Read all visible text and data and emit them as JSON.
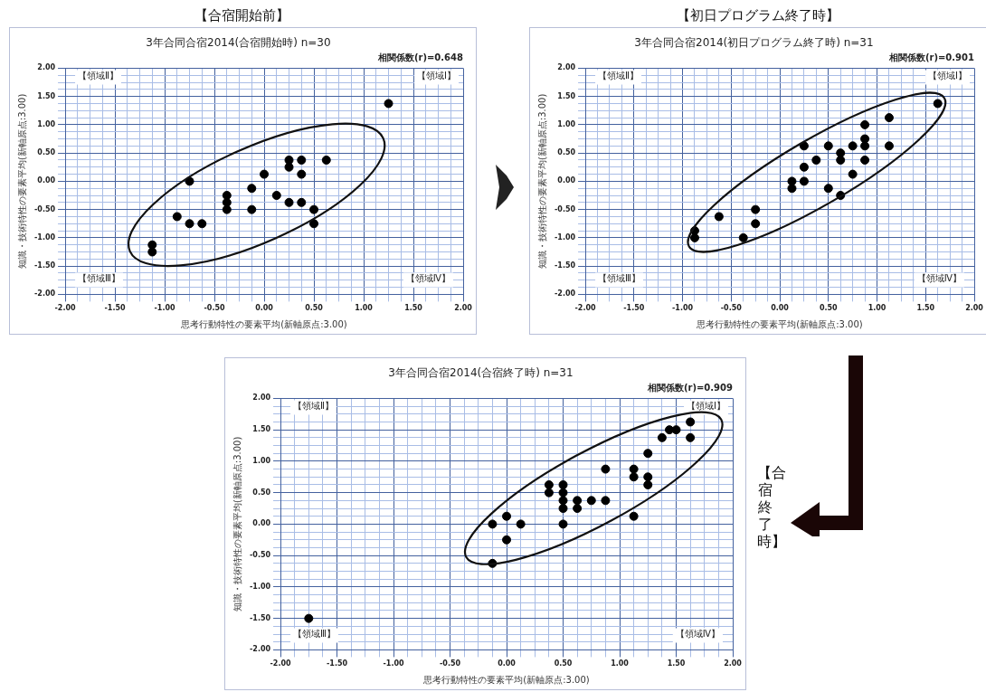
{
  "chart_data": [
    {
      "type": "scatter",
      "title": "3年合同合宿2014(合宿開始時) n=30",
      "xlabel": "思考行動特性の要素平均(新軸原点:3.00)",
      "ylabel": "知識・技術特性の要素平均(新軸原点:3.00)",
      "annotations": [
        "【合宿開始前】",
        "相関係数(r)=0.648",
        "【領域Ⅱ】",
        "【領域Ⅰ】",
        "【領域Ⅲ】",
        "【領域Ⅳ】"
      ],
      "x": [
        1.25,
        0.25,
        0.25,
        0.375,
        0.375,
        0.625,
        0,
        -0.75,
        -0.125,
        -0.375,
        -0.375,
        -0.375,
        -0.125,
        0.125,
        0.25,
        0.375,
        0.5,
        0.5,
        -0.875,
        -0.75,
        -0.625,
        -1.125,
        -1.125
      ],
      "values": [
        1.375,
        0.375,
        0.25,
        0.375,
        0.125,
        0.375,
        0.125,
        0,
        -0.125,
        -0.25,
        -0.375,
        -0.5,
        -0.5,
        -0.25,
        -0.375,
        -0.375,
        -0.5,
        -0.75,
        -0.625,
        -0.75,
        -0.75,
        -1.125,
        -1.25
      ],
      "color": "#000000",
      "marker": "circle",
      "grid": true,
      "xlim": [
        -2,
        2
      ],
      "ylim": [
        -2,
        2
      ],
      "xticks": [
        {
          "value": -2,
          "label": "-2.00"
        },
        {
          "value": -1.875,
          "label": null
        },
        {
          "value": -1.75,
          "label": null
        },
        {
          "value": -1.625,
          "label": null
        },
        {
          "value": -1.5,
          "label": "-1.50"
        },
        {
          "value": -1.375,
          "label": null
        },
        {
          "value": -1.25,
          "label": null
        },
        {
          "value": -1.125,
          "label": null
        },
        {
          "value": -1,
          "label": "-1.00"
        },
        {
          "value": -0.875,
          "label": null
        },
        {
          "value": -0.75,
          "label": null
        },
        {
          "value": -0.625,
          "label": null
        },
        {
          "value": -0.5,
          "label": "-0.50"
        },
        {
          "value": -0.375,
          "label": null
        },
        {
          "value": -0.25,
          "label": null
        },
        {
          "value": -0.125,
          "label": null
        },
        {
          "value": 0,
          "label": "0.00"
        },
        {
          "value": 0.125,
          "label": null
        },
        {
          "value": 0.25,
          "label": null
        },
        {
          "value": 0.375,
          "label": null
        },
        {
          "value": 0.5,
          "label": "0.50"
        },
        {
          "value": 0.625,
          "label": null
        },
        {
          "value": 0.75,
          "label": null
        },
        {
          "value": 0.875,
          "label": null
        },
        {
          "value": 1,
          "label": "1.00"
        },
        {
          "value": 1.125,
          "label": null
        },
        {
          "value": 1.25,
          "label": null
        },
        {
          "value": 1.375,
          "label": null
        },
        {
          "value": 1.5,
          "label": "1.50"
        },
        {
          "value": 1.625,
          "label": null
        },
        {
          "value": 1.75,
          "label": null
        },
        {
          "value": 1.875,
          "label": null
        },
        {
          "value": 2,
          "label": "2.00"
        }
      ],
      "yticks": [
        {
          "value": -2,
          "label": "-2.00"
        },
        {
          "value": -1.875,
          "label": null
        },
        {
          "value": -1.75,
          "label": null
        },
        {
          "value": -1.625,
          "label": null
        },
        {
          "value": -1.5,
          "label": "-1.50"
        },
        {
          "value": -1.375,
          "label": null
        },
        {
          "value": -1.25,
          "label": null
        },
        {
          "value": -1.125,
          "label": null
        },
        {
          "value": -1,
          "label": "-1.00"
        },
        {
          "value": -0.875,
          "label": null
        },
        {
          "value": -0.75,
          "label": null
        },
        {
          "value": -0.625,
          "label": null
        },
        {
          "value": -0.5,
          "label": "-0.50"
        },
        {
          "value": -0.375,
          "label": null
        },
        {
          "value": -0.25,
          "label": null
        },
        {
          "value": -0.125,
          "label": null
        },
        {
          "value": 0,
          "label": "0.00"
        },
        {
          "value": 0.125,
          "label": null
        },
        {
          "value": 0.25,
          "label": null
        },
        {
          "value": 0.375,
          "label": null
        },
        {
          "value": 0.5,
          "label": "0.50"
        },
        {
          "value": 0.625,
          "label": null
        },
        {
          "value": 0.75,
          "label": null
        },
        {
          "value": 0.875,
          "label": null
        },
        {
          "value": 1,
          "label": "1.00"
        },
        {
          "value": 1.125,
          "label": null
        },
        {
          "value": 1.25,
          "label": null
        },
        {
          "value": 1.375,
          "label": null
        },
        {
          "value": 1.5,
          "label": "1.50"
        },
        {
          "value": 1.625,
          "label": null
        },
        {
          "value": 1.75,
          "label": null
        },
        {
          "value": 1.875,
          "label": null
        },
        {
          "value": 2,
          "label": "2.00"
        }
      ]
    },
    {
      "type": "scatter",
      "title": "3年合同合宿2014(初日プログラム終了時) n=31",
      "xlabel": "思考行動特性の要素平均(新軸原点:3.00)",
      "ylabel": "知識・技術特性の要素平均(新軸原点:3.00)",
      "annotations": [
        "【初日プログラム終了時】",
        "相関係数(r)=0.901",
        "【領域Ⅱ】",
        "【領域Ⅰ】",
        "【領域Ⅲ】",
        "【領域Ⅳ】"
      ],
      "x": [
        1.625,
        1.125,
        0.875,
        0.875,
        0.875,
        0.875,
        1.125,
        0.75,
        0.5,
        0.25,
        0.625,
        0.625,
        0.375,
        0.25,
        0.75,
        0.125,
        0.25,
        0.125,
        0.5,
        0.625,
        -0.25,
        -0.25,
        -0.625,
        -0.375,
        -0.875,
        -0.875
      ],
      "values": [
        1.375,
        1.125,
        1,
        0.75,
        0.625,
        0.375,
        0.625,
        0.625,
        0.625,
        0.625,
        0.5,
        0.375,
        0.375,
        0.25,
        0.125,
        0,
        0,
        -0.125,
        -0.125,
        -0.25,
        -0.5,
        -0.75,
        -0.625,
        -1,
        -0.875,
        -1
      ],
      "color": "#000000",
      "marker": "circle",
      "grid": true,
      "xlim": [
        -2,
        2
      ],
      "ylim": [
        -2,
        2
      ],
      "xticks": [
        {
          "value": -2,
          "label": "-2.00"
        },
        {
          "value": -1.875,
          "label": null
        },
        {
          "value": -1.75,
          "label": null
        },
        {
          "value": -1.625,
          "label": null
        },
        {
          "value": -1.5,
          "label": "-1.50"
        },
        {
          "value": -1.375,
          "label": null
        },
        {
          "value": -1.25,
          "label": null
        },
        {
          "value": -1.125,
          "label": null
        },
        {
          "value": -1,
          "label": "-1.00"
        },
        {
          "value": -0.875,
          "label": null
        },
        {
          "value": -0.75,
          "label": null
        },
        {
          "value": -0.625,
          "label": null
        },
        {
          "value": -0.5,
          "label": "-0.50"
        },
        {
          "value": -0.375,
          "label": null
        },
        {
          "value": -0.25,
          "label": null
        },
        {
          "value": -0.125,
          "label": null
        },
        {
          "value": 0,
          "label": "0.00"
        },
        {
          "value": 0.125,
          "label": null
        },
        {
          "value": 0.25,
          "label": null
        },
        {
          "value": 0.375,
          "label": null
        },
        {
          "value": 0.5,
          "label": "0.50"
        },
        {
          "value": 0.625,
          "label": null
        },
        {
          "value": 0.75,
          "label": null
        },
        {
          "value": 0.875,
          "label": null
        },
        {
          "value": 1,
          "label": "1.00"
        },
        {
          "value": 1.125,
          "label": null
        },
        {
          "value": 1.25,
          "label": null
        },
        {
          "value": 1.375,
          "label": null
        },
        {
          "value": 1.5,
          "label": "1.50"
        },
        {
          "value": 1.625,
          "label": null
        },
        {
          "value": 1.75,
          "label": null
        },
        {
          "value": 1.875,
          "label": null
        },
        {
          "value": 2,
          "label": "2.00"
        }
      ],
      "yticks": [
        {
          "value": -2,
          "label": "-2.00"
        },
        {
          "value": -1.875,
          "label": null
        },
        {
          "value": -1.75,
          "label": null
        },
        {
          "value": -1.625,
          "label": null
        },
        {
          "value": -1.5,
          "label": "-1.50"
        },
        {
          "value": -1.375,
          "label": null
        },
        {
          "value": -1.25,
          "label": null
        },
        {
          "value": -1.125,
          "label": null
        },
        {
          "value": -1,
          "label": "-1.00"
        },
        {
          "value": -0.875,
          "label": null
        },
        {
          "value": -0.75,
          "label": null
        },
        {
          "value": -0.625,
          "label": null
        },
        {
          "value": -0.5,
          "label": "-0.50"
        },
        {
          "value": -0.375,
          "label": null
        },
        {
          "value": -0.25,
          "label": null
        },
        {
          "value": -0.125,
          "label": null
        },
        {
          "value": 0,
          "label": "0.00"
        },
        {
          "value": 0.125,
          "label": null
        },
        {
          "value": 0.25,
          "label": null
        },
        {
          "value": 0.375,
          "label": null
        },
        {
          "value": 0.5,
          "label": "0.50"
        },
        {
          "value": 0.625,
          "label": null
        },
        {
          "value": 0.75,
          "label": null
        },
        {
          "value": 0.875,
          "label": null
        },
        {
          "value": 1,
          "label": "1.00"
        },
        {
          "value": 1.125,
          "label": null
        },
        {
          "value": 1.25,
          "label": null
        },
        {
          "value": 1.375,
          "label": null
        },
        {
          "value": 1.5,
          "label": "1.50"
        },
        {
          "value": 1.625,
          "label": null
        },
        {
          "value": 1.75,
          "label": null
        },
        {
          "value": 1.875,
          "label": null
        },
        {
          "value": 2,
          "label": "2.00"
        }
      ]
    },
    {
      "type": "scatter",
      "title": "3年合同合宿2014(合宿終了時) n=31",
      "xlabel": "思考行動特性の要素平均(新軸原点:3.00)",
      "ylabel": "知識・技術特性の要素平均(新軸原点:3.00)",
      "annotations": [
        "【合宿終了時】",
        "相関係数(r)=0.909",
        "【領域Ⅱ】",
        "【領域Ⅰ】",
        "【領域Ⅲ】",
        "【領域Ⅳ】"
      ],
      "x": [
        1.625,
        1.44,
        1.5,
        1.625,
        1.375,
        1.25,
        1.125,
        1.125,
        1.25,
        1.25,
        1.125,
        0.875,
        0.875,
        0.75,
        0.625,
        0.625,
        0.5,
        0.5,
        0.5,
        0.5,
        0.5,
        0.375,
        0.375,
        0.125,
        0,
        0,
        -0.125,
        -0.125,
        -1.75
      ],
      "values": [
        1.625,
        1.5,
        1.5,
        1.375,
        1.375,
        1.125,
        0.875,
        0.75,
        0.75,
        0.625,
        0.125,
        0.875,
        0.375,
        0.375,
        0.375,
        0.25,
        0.625,
        0.5,
        0.375,
        0.25,
        0,
        0.625,
        0.5,
        0,
        0.125,
        -0.25,
        0,
        -0.625,
        -1.5
      ],
      "color": "#000000",
      "marker": "circle",
      "grid": true,
      "xlim": [
        -2,
        2
      ],
      "ylim": [
        -2,
        2
      ],
      "xticks": [
        {
          "value": -2,
          "label": "-2.00"
        },
        {
          "value": -1.875,
          "label": null
        },
        {
          "value": -1.75,
          "label": null
        },
        {
          "value": -1.625,
          "label": null
        },
        {
          "value": -1.5,
          "label": "-1.50"
        },
        {
          "value": -1.375,
          "label": null
        },
        {
          "value": -1.25,
          "label": null
        },
        {
          "value": -1.125,
          "label": null
        },
        {
          "value": -1,
          "label": "-1.00"
        },
        {
          "value": -0.875,
          "label": null
        },
        {
          "value": -0.75,
          "label": null
        },
        {
          "value": -0.625,
          "label": null
        },
        {
          "value": -0.5,
          "label": "-0.50"
        },
        {
          "value": -0.375,
          "label": null
        },
        {
          "value": -0.25,
          "label": null
        },
        {
          "value": -0.125,
          "label": null
        },
        {
          "value": 0,
          "label": "0.00"
        },
        {
          "value": 0.125,
          "label": null
        },
        {
          "value": 0.25,
          "label": null
        },
        {
          "value": 0.375,
          "label": null
        },
        {
          "value": 0.5,
          "label": "0.50"
        },
        {
          "value": 0.625,
          "label": null
        },
        {
          "value": 0.75,
          "label": null
        },
        {
          "value": 0.875,
          "label": null
        },
        {
          "value": 1,
          "label": "1.00"
        },
        {
          "value": 1.125,
          "label": null
        },
        {
          "value": 1.25,
          "label": null
        },
        {
          "value": 1.375,
          "label": null
        },
        {
          "value": 1.5,
          "label": "1.50"
        },
        {
          "value": 1.625,
          "label": null
        },
        {
          "value": 1.75,
          "label": null
        },
        {
          "value": 1.875,
          "label": null
        },
        {
          "value": 2,
          "label": "2.00"
        }
      ],
      "yticks": [
        {
          "value": -2,
          "label": "-2.00"
        },
        {
          "value": -1.875,
          "label": null
        },
        {
          "value": -1.75,
          "label": null
        },
        {
          "value": -1.625,
          "label": null
        },
        {
          "value": -1.5,
          "label": "-1.50"
        },
        {
          "value": -1.375,
          "label": null
        },
        {
          "value": -1.25,
          "label": null
        },
        {
          "value": -1.125,
          "label": null
        },
        {
          "value": -1,
          "label": "-1.00"
        },
        {
          "value": -0.875,
          "label": null
        },
        {
          "value": -0.75,
          "label": null
        },
        {
          "value": -0.625,
          "label": null
        },
        {
          "value": -0.5,
          "label": "-0.50"
        },
        {
          "value": -0.375,
          "label": null
        },
        {
          "value": -0.25,
          "label": null
        },
        {
          "value": -0.125,
          "label": null
        },
        {
          "value": 0,
          "label": "0.00"
        },
        {
          "value": 0.125,
          "label": null
        },
        {
          "value": 0.25,
          "label": null
        },
        {
          "value": 0.375,
          "label": null
        },
        {
          "value": 0.5,
          "label": "0.50"
        },
        {
          "value": 0.625,
          "label": null
        },
        {
          "value": 0.75,
          "label": null
        },
        {
          "value": 0.875,
          "label": null
        },
        {
          "value": 1,
          "label": "1.00"
        },
        {
          "value": 1.125,
          "label": null
        },
        {
          "value": 1.25,
          "label": null
        },
        {
          "value": 1.375,
          "label": null
        },
        {
          "value": 1.5,
          "label": "1.50"
        },
        {
          "value": 1.625,
          "label": null
        },
        {
          "value": 1.75,
          "label": null
        },
        {
          "value": 1.875,
          "label": null
        },
        {
          "value": 2,
          "label": "2.00"
        }
      ]
    }
  ]
}
